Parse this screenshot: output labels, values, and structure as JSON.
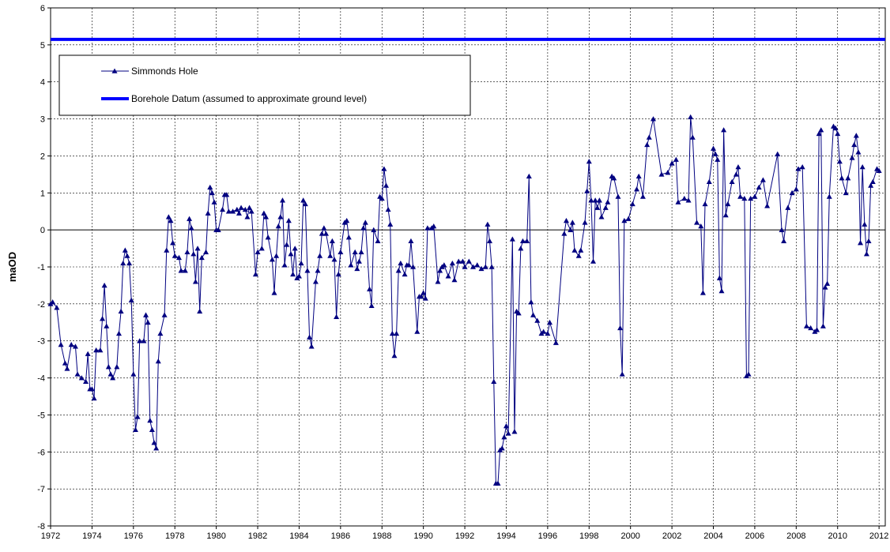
{
  "chart_data": {
    "type": "line",
    "ylabel": "maOD",
    "xlim": [
      1972,
      2012.3
    ],
    "ylim": [
      -8,
      6
    ],
    "xticks": [
      1972,
      1974,
      1976,
      1978,
      1980,
      1982,
      1984,
      1986,
      1988,
      1990,
      1992,
      1994,
      1996,
      1998,
      2000,
      2002,
      2004,
      2006,
      2008,
      2010,
      2012
    ],
    "yticks": [
      -8,
      -7,
      -6,
      -5,
      -4,
      -3,
      -2,
      -1,
      0,
      1,
      2,
      3,
      4,
      5,
      6
    ],
    "grid": true,
    "legend": "upper left",
    "series": [
      {
        "name": "Simmonds Hole",
        "color": "#000080",
        "marker": "triangle",
        "x": [
          1972,
          1972.1,
          1972.3,
          1972.5,
          1972.7,
          1972.8,
          1973,
          1973.2,
          1973.3,
          1973.5,
          1973.7,
          1973.8,
          1973.9,
          1974,
          1974.1,
          1974.2,
          1974.4,
          1974.5,
          1974.6,
          1974.7,
          1974.8,
          1974.9,
          1975,
          1975.2,
          1975.3,
          1975.4,
          1975.5,
          1975.6,
          1975.7,
          1975.8,
          1975.9,
          1976,
          1976.1,
          1976.2,
          1976.3,
          1976.5,
          1976.6,
          1976.7,
          1976.8,
          1976.9,
          1977,
          1977.1,
          1977.2,
          1977.3,
          1977.5,
          1977.6,
          1977.7,
          1977.8,
          1977.9,
          1978,
          1978.2,
          1978.3,
          1978.5,
          1978.6,
          1978.7,
          1978.8,
          1978.9,
          1979,
          1979.1,
          1979.2,
          1979.3,
          1979.5,
          1979.6,
          1979.7,
          1979.8,
          1979.9,
          1980,
          1980.1,
          1980.3,
          1980.4,
          1980.5,
          1980.6,
          1980.8,
          1981,
          1981.1,
          1981.2,
          1981.4,
          1981.5,
          1981.6,
          1981.7,
          1981.9,
          1982,
          1982.2,
          1982.3,
          1982.4,
          1982.5,
          1982.7,
          1982.8,
          1982.9,
          1983,
          1983.1,
          1983.2,
          1983.3,
          1983.4,
          1983.5,
          1983.6,
          1983.7,
          1983.8,
          1983.9,
          1984,
          1984.1,
          1984.2,
          1984.3,
          1984.4,
          1984.5,
          1984.6,
          1984.8,
          1984.9,
          1985,
          1985.1,
          1985.2,
          1985.3,
          1985.5,
          1985.6,
          1985.7,
          1985.8,
          1985.9,
          1986,
          1986.2,
          1986.3,
          1986.4,
          1986.5,
          1986.7,
          1986.8,
          1986.9,
          1987,
          1987.1,
          1987.2,
          1987.4,
          1987.5,
          1987.6,
          1987.8,
          1987.9,
          1988,
          1988.1,
          1988.2,
          1988.3,
          1988.4,
          1988.5,
          1988.6,
          1988.7,
          1988.8,
          1988.9,
          1989.1,
          1989.2,
          1989.3,
          1989.4,
          1989.5,
          1989.7,
          1989.8,
          1989.9,
          1990,
          1990.1,
          1990.2,
          1990.4,
          1990.5,
          1990.7,
          1990.8,
          1990.9,
          1991,
          1991.2,
          1991.4,
          1991.5,
          1991.7,
          1991.9,
          1992,
          1992.2,
          1992.4,
          1992.6,
          1992.8,
          1993,
          1993.1,
          1993.2,
          1993.3,
          1993.4,
          1993.5,
          1993.6,
          1993.7,
          1993.8,
          1993.9,
          1994,
          1994.1,
          1994.3,
          1994.4,
          1994.5,
          1994.6,
          1994.7,
          1994.8,
          1995,
          1995.1,
          1995.2,
          1995.3,
          1995.5,
          1995.7,
          1995.8,
          1996,
          1996.1,
          1996.4,
          1996.8,
          1996.9,
          1997.1,
          1997.2,
          1997.3,
          1997.5,
          1997.6,
          1997.8,
          1997.9,
          1998,
          1998.1,
          1998.2,
          1998.3,
          1998.4,
          1998.5,
          1998.6,
          1998.8,
          1998.9,
          1999.1,
          1999.2,
          1999.4,
          1999.5,
          1999.6,
          1999.7,
          1999.9,
          2000.1,
          2000.3,
          2000.4,
          2000.6,
          2000.8,
          2000.9,
          2001.1,
          2001.5,
          2001.8,
          2002,
          2002.2,
          2002.3,
          2002.6,
          2002.8,
          2002.9,
          2003,
          2003.2,
          2003.4,
          2003.5,
          2003.6,
          2003.8,
          2004,
          2004.1,
          2004.2,
          2004.3,
          2004.4,
          2004.5,
          2004.6,
          2004.7,
          2004.9,
          2005.1,
          2005.2,
          2005.3,
          2005.5,
          2005.6,
          2005.7,
          2005.8,
          2006,
          2006.2,
          2006.4,
          2006.6,
          2007.1,
          2007.3,
          2007.4,
          2007.6,
          2007.8,
          2008,
          2008.1,
          2008.3,
          2008.5,
          2008.7,
          2008.9,
          2009,
          2009.1,
          2009.2,
          2009.3,
          2009.4,
          2009.5,
          2009.6,
          2009.8,
          2009.9,
          2010,
          2010.1,
          2010.2,
          2010.4,
          2010.5,
          2010.7,
          2010.8,
          2010.9,
          2011,
          2011.1,
          2011.2,
          2011.3,
          2011.4,
          2011.5,
          2011.6,
          2011.7,
          2011.9,
          2012
        ],
        "values": [
          -2,
          -1.95,
          -2.1,
          -3.1,
          -3.6,
          -3.75,
          -3.1,
          -3.15,
          -3.9,
          -4,
          -4.1,
          -3.35,
          -4.3,
          -4.3,
          -4.55,
          -3.25,
          -3.25,
          -2.4,
          -1.5,
          -2.6,
          -3.7,
          -3.9,
          -4,
          -3.7,
          -2.8,
          -2.2,
          -0.9,
          -0.55,
          -0.7,
          -0.9,
          -1.9,
          -3.9,
          -5.4,
          -5.05,
          -3,
          -3,
          -2.3,
          -2.5,
          -5.15,
          -5.4,
          -5.75,
          -5.9,
          -3.55,
          -2.8,
          -2.3,
          -0.55,
          0.35,
          0.25,
          -0.35,
          -0.7,
          -0.75,
          -1.1,
          -1.1,
          -0.6,
          0.3,
          0.05,
          -0.65,
          -1.4,
          -0.5,
          -2.2,
          -0.75,
          -0.6,
          0.45,
          1.15,
          1,
          0.75,
          0,
          0,
          0.55,
          0.95,
          0.95,
          0.5,
          0.5,
          0.55,
          0.45,
          0.6,
          0.55,
          0.35,
          0.6,
          0.5,
          -1.2,
          -0.6,
          -0.5,
          0.45,
          0.35,
          -0.2,
          -0.8,
          -1.7,
          -0.7,
          0.1,
          0.35,
          0.8,
          -0.95,
          -0.4,
          0.25,
          -0.65,
          -1.2,
          -0.5,
          -1.3,
          -1.25,
          -0.9,
          0.8,
          0.7,
          -1.1,
          -2.9,
          -3.15,
          -1.4,
          -1.1,
          -0.7,
          -0.1,
          0.05,
          -0.1,
          -0.7,
          -0.3,
          -0.8,
          -2.35,
          -1.2,
          -0.6,
          0.2,
          0.25,
          -0.2,
          -0.95,
          -0.6,
          -1.05,
          -0.85,
          -0.6,
          0.05,
          0.2,
          -1.6,
          -2.05,
          0,
          -0.3,
          0.9,
          0.85,
          1.65,
          1.2,
          0.55,
          0.15,
          -2.8,
          -3.4,
          -2.8,
          -1.1,
          -0.9,
          -1.2,
          -0.95,
          -0.95,
          -0.3,
          -1,
          -2.75,
          -1.8,
          -1.8,
          -1.7,
          -1.85,
          0.05,
          0.05,
          0.1,
          -1.4,
          -1.1,
          -1,
          -0.95,
          -1.25,
          -0.9,
          -1.35,
          -0.85,
          -0.85,
          -1,
          -0.85,
          -1,
          -0.95,
          -1.05,
          -1,
          0.15,
          -0.3,
          -1,
          -4.1,
          -6.85,
          -6.85,
          -5.95,
          -5.9,
          -5.6,
          -5.3,
          -5.5,
          -0.25,
          -5.45,
          -2.2,
          -2.25,
          -0.5,
          -0.3,
          -0.3,
          1.45,
          -1.95,
          -2.3,
          -2.45,
          -2.8,
          -2.75,
          -2.8,
          -2.5,
          -3.05,
          -0.1,
          0.25,
          0,
          0.2,
          -0.55,
          -0.7,
          -0.55,
          0.2,
          1.05,
          1.85,
          0.8,
          -0.85,
          0.8,
          0.6,
          0.8,
          0.35,
          0.6,
          0.75,
          1.45,
          1.4,
          0.9,
          -2.65,
          -3.9,
          0.25,
          0.3,
          0.7,
          1.1,
          1.45,
          0.9,
          2.3,
          2.5,
          3,
          1.5,
          1.55,
          1.8,
          1.9,
          0.75,
          0.85,
          0.8,
          3.05,
          2.5,
          0.2,
          0.1,
          -1.7,
          0.7,
          1.3,
          2.2,
          2.05,
          1.9,
          -1.3,
          -1.65,
          2.7,
          0.4,
          0.7,
          1.3,
          1.5,
          1.7,
          0.9,
          0.85,
          -3.95,
          -3.9,
          0.85,
          0.9,
          1.15,
          1.35,
          0.65,
          2.05,
          0,
          -0.3,
          0.6,
          1,
          1.1,
          1.65,
          1.7,
          -2.6,
          -2.65,
          -2.75,
          -2.7,
          2.6,
          2.7,
          -2.6,
          -1.55,
          -1.45,
          0.9,
          2.8,
          2.75,
          2.6,
          1.85,
          1.4,
          1,
          1.4,
          1.95,
          2.3,
          2.55,
          2.1,
          -0.35,
          1.7,
          0.15,
          -0.65,
          -0.3,
          1.2,
          1.3,
          1.65,
          1.6
        ]
      },
      {
        "name": "Borehole Datum (assumed to approximate ground level)",
        "color": "#0000ff",
        "x": [
          1972,
          2012.3
        ],
        "values": [
          5.15,
          5.15
        ]
      }
    ]
  }
}
